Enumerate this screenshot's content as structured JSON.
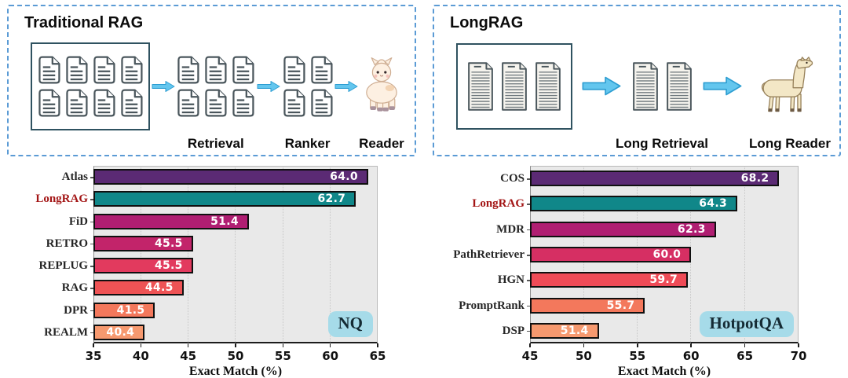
{
  "diagrams": {
    "traditional": {
      "title": "Traditional RAG",
      "corpus_doc_count": 8,
      "stages": [
        {
          "label": "Retrieval",
          "doc_count": 6
        },
        {
          "label": "Ranker",
          "doc_count": 4
        },
        {
          "label": "Reader",
          "icon": "alpaca-icon"
        }
      ]
    },
    "longrag": {
      "title": "LongRAG",
      "corpus_doc_count": 3,
      "stages": [
        {
          "label": "Long Retrieval",
          "doc_count": 2
        },
        {
          "label": "Long Reader",
          "icon": "llama-icon"
        }
      ]
    }
  },
  "chart_data": [
    {
      "type": "bar",
      "orientation": "horizontal",
      "dataset_badge": "NQ",
      "xlabel": "Exact Match (%)",
      "xlim": [
        35,
        65
      ],
      "xticks": [
        35,
        40,
        45,
        50,
        55,
        60,
        65
      ],
      "grid": true,
      "highlight_category": "LongRAG",
      "categories": [
        "Atlas",
        "LongRAG",
        "FiD",
        "RETRO",
        "REPLUG",
        "RAG",
        "DPR",
        "REALM"
      ],
      "values": [
        64.0,
        62.7,
        51.4,
        45.5,
        45.5,
        44.5,
        41.5,
        40.4
      ],
      "value_labels": [
        "64.0",
        "62.7",
        "51.4",
        "45.5",
        "45.5",
        "44.5",
        "41.5",
        "40.4"
      ],
      "bar_colors": [
        "#5b2a74",
        "#108789",
        "#b01e72",
        "#c2246a",
        "#e23a5e",
        "#ee5355",
        "#f3785c",
        "#f6996f"
      ]
    },
    {
      "type": "bar",
      "orientation": "horizontal",
      "dataset_badge": "HotpotQA",
      "xlabel": "Exact Match (%)",
      "xlim": [
        45,
        70
      ],
      "xticks": [
        45,
        50,
        55,
        60,
        65,
        70
      ],
      "grid": true,
      "highlight_category": "LongRAG",
      "categories": [
        "COS",
        "LongRAG",
        "MDR",
        "PathRetriever",
        "HGN",
        "PromptRank",
        "DSP"
      ],
      "values": [
        68.2,
        64.3,
        62.3,
        60.0,
        59.7,
        55.7,
        51.4
      ],
      "value_labels": [
        "68.2",
        "64.3",
        "62.3",
        "60.0",
        "59.7",
        "55.7",
        "51.4"
      ],
      "bar_colors": [
        "#5b2a74",
        "#108789",
        "#b01e72",
        "#d62f63",
        "#ef4b57",
        "#f3785c",
        "#f6996f"
      ]
    }
  ],
  "colors": {
    "panel_border": "#5b9bd5",
    "arrow_fill": "#63c6ee",
    "arrow_stroke": "#2e9ed2",
    "badge_bg": "#a6dbe9",
    "badge_text": "#152b34",
    "highlight_label": "#a31515",
    "plot_background": "#e9e9e9"
  }
}
